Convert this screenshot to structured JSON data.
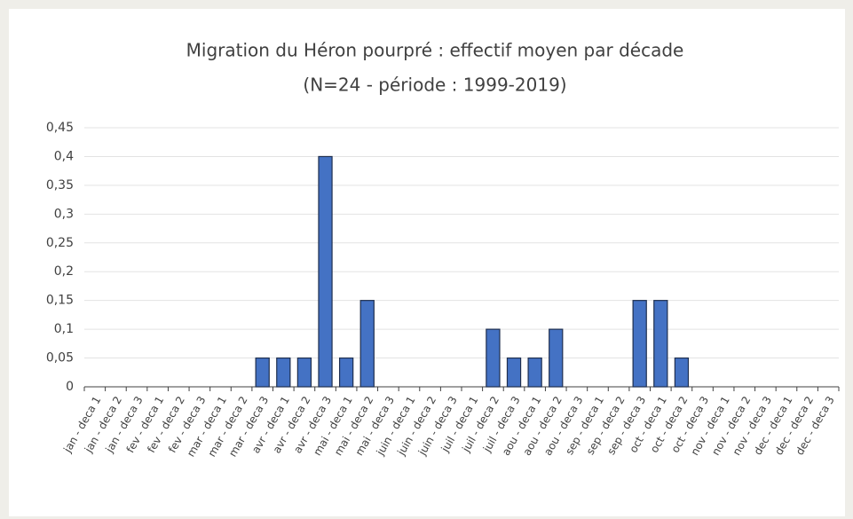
{
  "chart_data": {
    "type": "bar",
    "title": "Migration du Héron pourpré : effectif moyen par décade",
    "subtitle": "(N=24 - période : 1999-2019)",
    "categories": [
      "jan - deca 1",
      "jan - deca 2",
      "jan - deca 3",
      "fev - deca 1",
      "fev - deca 2",
      "fev - deca 3",
      "mar - deca 1",
      "mar - deca 2",
      "mar - deca 3",
      "avr - deca 1",
      "avr - deca 2",
      "avr - deca 3",
      "mai - deca 1",
      "mai - deca 2",
      "mai - deca 3",
      "juin - deca 1",
      "juin - deca 2",
      "juin - deca 3",
      "juil - deca 1",
      "juil - deca 2",
      "juil - deca 3",
      "aou - deca 1",
      "aou - deca 2",
      "aou - deca 3",
      "sep - deca 1",
      "sep - deca 2",
      "sep - deca 3",
      "oct - deca 1",
      "oct - deca 2",
      "oct - deca 3",
      "nov - deca 1",
      "nov - deca 2",
      "nov - deca 3",
      "dec - deca 1",
      "dec - deca 2",
      "dec - deca 3"
    ],
    "values": [
      0,
      0,
      0,
      0,
      0,
      0,
      0,
      0,
      0.05,
      0.05,
      0.05,
      0.4,
      0.05,
      0.15,
      0,
      0,
      0,
      0,
      0,
      0.1,
      0.05,
      0.05,
      0.1,
      0,
      0,
      0,
      0.15,
      0.15,
      0.05,
      0,
      0,
      0,
      0,
      0,
      0,
      0
    ],
    "color": "#4472c4",
    "ylim": [
      0,
      0.45
    ],
    "yticks": [
      0,
      {
        "value": 0.05,
        "label": "0,05"
      },
      {
        "value": 0.1,
        "label": "0,1"
      },
      {
        "value": 0.15,
        "label": "0,15"
      },
      {
        "value": 0.2,
        "label": "0,2"
      },
      {
        "value": 0.25,
        "label": "0,25"
      },
      {
        "value": 0.3,
        "label": "0,3"
      },
      {
        "value": 0.35,
        "label": "0,35"
      },
      {
        "value": 0.4,
        "label": "0,4"
      },
      {
        "value": 0.45,
        "label": "0,45"
      }
    ],
    "grid": true
  }
}
